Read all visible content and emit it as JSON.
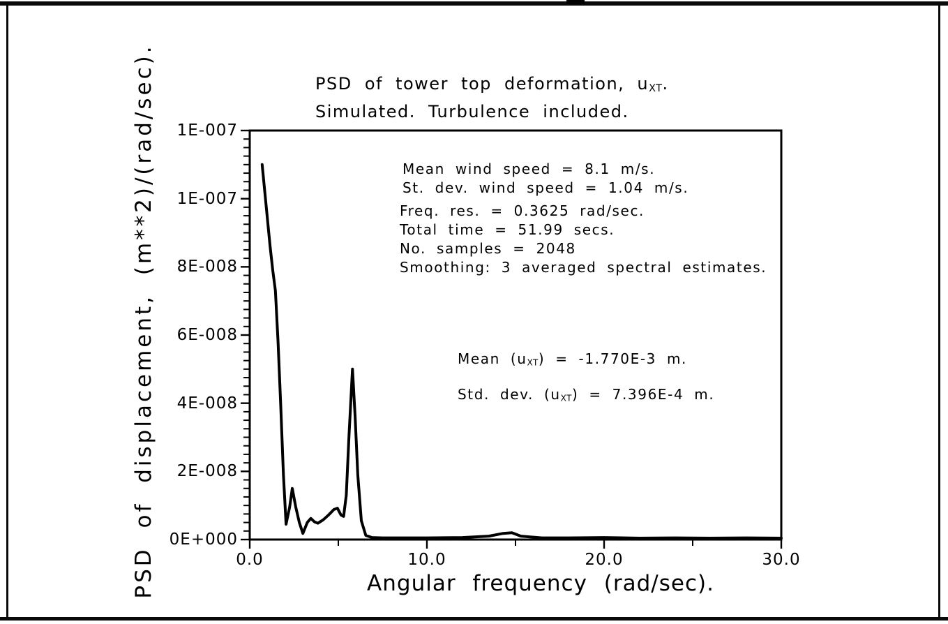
{
  "titles": {
    "title_line1_pre": "PSD of tower top deformation, u",
    "title_line1_sub": "XT",
    "title_line1_post": ".",
    "title_line2": "Simulated. Turbulence included."
  },
  "annotations": {
    "wind": {
      "line1": "Mean wind speed = 8.1 m/s.",
      "line2": "St. dev. wind speed = 1.04 m/s."
    },
    "signal": {
      "line1": "Freq. res. = 0.3625 rad/sec.",
      "line2": "Total time = 51.99 secs.",
      "line3": "No. samples = 2048",
      "line4": "Smoothing: 3 averaged spectral estimates."
    },
    "stats": {
      "mean_pre": "Mean (u",
      "mean_sub": "XT",
      "mean_post": ") = -1.770E-3 m.",
      "std_pre": "Std. dev. (u",
      "std_sub": "XT",
      "std_post": ") = 7.396E-4 m."
    }
  },
  "chart_data": {
    "type": "line",
    "title": "PSD of tower top deformation, u_XT. Simulated. Turbulence included.",
    "xlabel": "Angular frequency (rad/sec).",
    "ylabel": "PSD of displacement, (m**2)/(rad/sec).",
    "xlim": [
      0,
      30
    ],
    "ylim": [
      0,
      1.2e-07
    ],
    "grid": false,
    "legend": "none",
    "line_color": "#000000",
    "background_color": "#ffffff",
    "x_major_ticks": [
      {
        "value": 0,
        "label": "0.0"
      },
      {
        "value": 10,
        "label": "10.0"
      },
      {
        "value": 20,
        "label": "20.0"
      },
      {
        "value": 30,
        "label": "30.0"
      }
    ],
    "x_minor_ticks": [
      5,
      15,
      25
    ],
    "y_major_ticks": [
      {
        "value": 0,
        "label": "0E+000"
      },
      {
        "value": 2e-08,
        "label": "2E-008"
      },
      {
        "value": 4e-08,
        "label": "4E-008"
      },
      {
        "value": 6e-08,
        "label": "6E-008"
      },
      {
        "value": 8e-08,
        "label": "8E-008"
      },
      {
        "value": 1e-07,
        "label": "1E-007"
      },
      {
        "value": 1.2e-07,
        "label": "1E-007"
      }
    ],
    "y_minor_step": 2.5e-09,
    "series": [
      {
        "name": "PSD of u_XT (simulated, turbulence included)",
        "points": [
          [
            0.7,
            1.1e-07
          ],
          [
            0.85,
            1.02e-07
          ],
          [
            1.0,
            9.4e-08
          ],
          [
            1.15,
            8.6e-08
          ],
          [
            1.3,
            7.9e-08
          ],
          [
            1.45,
            7.3e-08
          ],
          [
            1.6,
            5.8e-08
          ],
          [
            1.75,
            3.9e-08
          ],
          [
            1.9,
            1.9e-08
          ],
          [
            2.05,
            4.5e-09
          ],
          [
            2.25,
            9.5e-09
          ],
          [
            2.4,
            1.5e-08
          ],
          [
            2.6,
            9.5e-09
          ],
          [
            2.8,
            5e-09
          ],
          [
            3.0,
            1.8e-09
          ],
          [
            3.25,
            5e-09
          ],
          [
            3.45,
            6.2e-09
          ],
          [
            3.65,
            5.2e-09
          ],
          [
            3.85,
            4.8e-09
          ],
          [
            4.15,
            5.8e-09
          ],
          [
            4.45,
            7.2e-09
          ],
          [
            4.75,
            8.8e-09
          ],
          [
            4.95,
            9.2e-09
          ],
          [
            5.15,
            7.2e-09
          ],
          [
            5.3,
            6.8e-09
          ],
          [
            5.45,
            1.3e-08
          ],
          [
            5.6,
            3e-08
          ],
          [
            5.8,
            5e-08
          ],
          [
            5.95,
            3.6e-08
          ],
          [
            6.1,
            1.9e-08
          ],
          [
            6.3,
            5.5e-09
          ],
          [
            6.55,
            1.2e-09
          ],
          [
            6.9,
            6e-10
          ],
          [
            7.5,
            5e-10
          ],
          [
            8.5,
            5e-10
          ],
          [
            10.0,
            5e-10
          ],
          [
            12.0,
            6e-10
          ],
          [
            13.5,
            1e-09
          ],
          [
            14.3,
            1.8e-09
          ],
          [
            14.8,
            2e-09
          ],
          [
            15.3,
            1e-09
          ],
          [
            16.5,
            5e-10
          ],
          [
            18.0,
            5e-10
          ],
          [
            20.0,
            6e-10
          ],
          [
            22.0,
            4e-10
          ],
          [
            24.0,
            5e-10
          ],
          [
            26.0,
            4e-10
          ],
          [
            28.0,
            5e-10
          ],
          [
            30.0,
            4e-10
          ]
        ]
      }
    ]
  }
}
